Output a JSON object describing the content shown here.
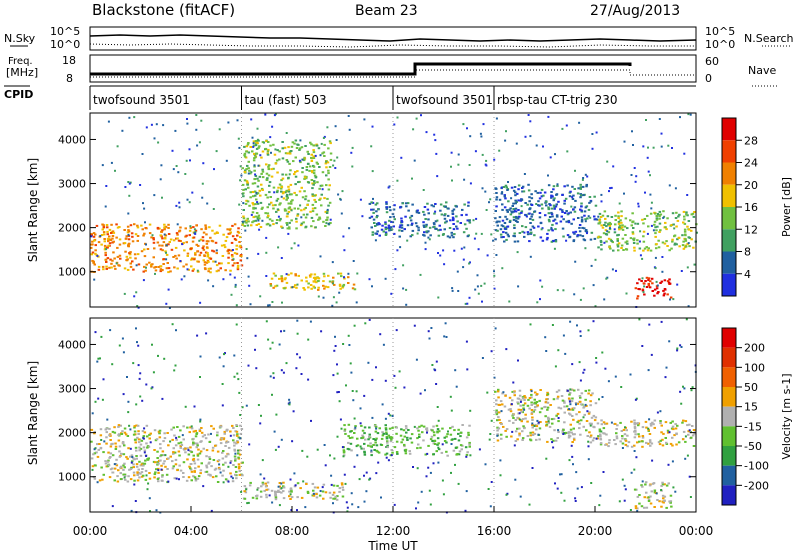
{
  "header": {
    "station": "Blackstone (fitACF)",
    "beam": "Beam 23",
    "date": "27/Aug/2013"
  },
  "top_labels": {
    "nsky": "N.Sky",
    "nsearch": "N.Search",
    "freq_line1": "Freq.",
    "freq_line2": "[MHz]",
    "cpid": "CPID",
    "nave": "Nave",
    "nsky_ticks": [
      "10^5",
      "10^0"
    ],
    "nsearch_ticks": [
      "10^5",
      "10^0"
    ],
    "freq_ticks": [
      "18",
      "8"
    ],
    "nave_ticks": [
      "60",
      "0"
    ]
  },
  "cpid_segments": [
    {
      "label": "twofsound 3501",
      "start": 0
    },
    {
      "label": "tau (fast) 503",
      "start": 6
    },
    {
      "label": "twofsound 3501",
      "start": 12
    },
    {
      "label": "rbsp-tau CT-trig 230",
      "start": 16
    }
  ],
  "colors": {
    "power": [
      "#2030e0",
      "#2060a0",
      "#40a060",
      "#70c040",
      "#f0c000",
      "#f08000",
      "#f04000",
      "#e00000"
    ],
    "velocity": [
      "#2020c0",
      "#2060a0",
      "#30a040",
      "#60c030",
      "#b0b0b0",
      "#f0a000",
      "#f06000",
      "#e03000",
      "#e00000"
    ]
  },
  "chart_data": [
    {
      "type": "heatmap",
      "panel": "power",
      "ylabel": "Slant Range [km]",
      "ylim": [
        200,
        4600
      ],
      "xlim": [
        0,
        24
      ],
      "yticks": [
        "1000",
        "2000",
        "3000",
        "4000"
      ],
      "colorbar_label": "Power [dB]",
      "colorbar_ticks": [
        "28",
        "24",
        "20",
        "16",
        "12",
        "8",
        "4"
      ],
      "bands": [
        {
          "start": 0,
          "end": 6,
          "range_start": 1000,
          "range_end": 2100,
          "level": 5
        },
        {
          "start": 6,
          "end": 9.5,
          "range_start": 2000,
          "range_end": 4000,
          "level": 3
        },
        {
          "start": 7,
          "end": 10.5,
          "range_start": 600,
          "range_end": 1000,
          "level": 4
        },
        {
          "start": 11,
          "end": 15,
          "range_start": 1800,
          "range_end": 2600,
          "level": 1
        },
        {
          "start": 16,
          "end": 20,
          "range_start": 1700,
          "range_end": 3000,
          "level": 1
        },
        {
          "start": 20,
          "end": 24,
          "range_start": 1500,
          "range_end": 2400,
          "level": 3
        },
        {
          "start": 21.5,
          "end": 23,
          "range_start": 400,
          "range_end": 900,
          "level": 7
        }
      ]
    },
    {
      "type": "heatmap",
      "panel": "velocity",
      "xlabel": "Time UT",
      "ylabel": "Slant Range [km]",
      "ylim": [
        200,
        4600
      ],
      "xlim": [
        0,
        24
      ],
      "xticks": [
        "00:00",
        "04:00",
        "08:00",
        "12:00",
        "16:00",
        "20:00",
        "00:00"
      ],
      "yticks": [
        "1000",
        "2000",
        "3000",
        "4000"
      ],
      "colorbar_label": "Velocity [m s-1]",
      "colorbar_ticks": [
        "200",
        "100",
        "50",
        "15",
        "-15",
        "-50",
        "-100",
        "-200"
      ],
      "bands": [
        {
          "start": 0,
          "end": 6,
          "range_start": 900,
          "range_end": 2200,
          "level": 4
        },
        {
          "start": 6,
          "end": 10,
          "range_start": 500,
          "range_end": 900,
          "level": 4
        },
        {
          "start": 10,
          "end": 15,
          "range_start": 1500,
          "range_end": 2200,
          "level": 3
        },
        {
          "start": 16,
          "end": 20,
          "range_start": 1800,
          "range_end": 3000,
          "level": 4
        },
        {
          "start": 20,
          "end": 24,
          "range_start": 1700,
          "range_end": 2300,
          "level": 4
        },
        {
          "start": 21.5,
          "end": 23,
          "range_start": 300,
          "range_end": 900,
          "level": 4
        }
      ]
    }
  ]
}
